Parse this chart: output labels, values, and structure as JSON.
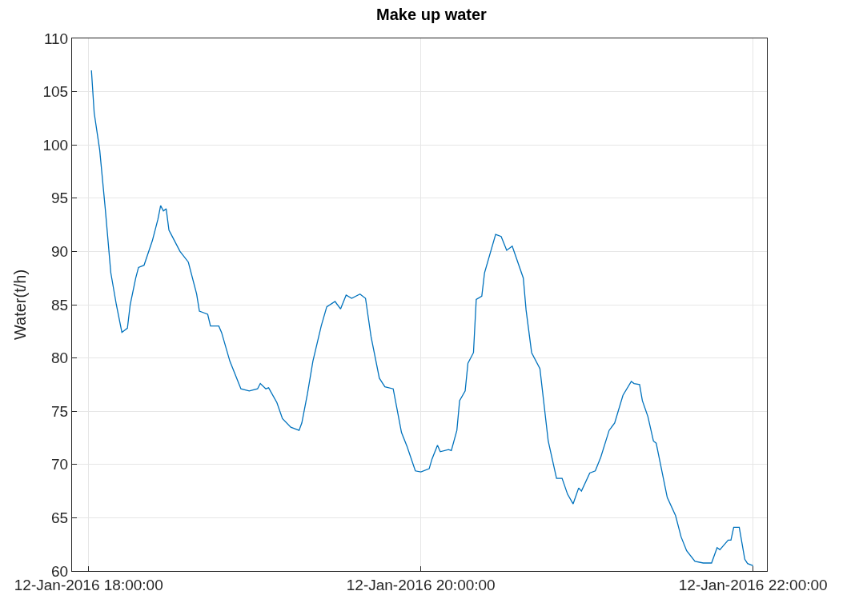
{
  "chart_data": {
    "type": "line",
    "title": "Make up water",
    "ylabel": "Water(t/h)",
    "x": [
      "2016-01-12T18:01",
      "2016-01-12T18:02",
      "2016-01-12T18:04",
      "2016-01-12T18:06",
      "2016-01-12T18:08",
      "2016-01-12T18:10",
      "2016-01-12T18:12",
      "2016-01-12T18:13",
      "2016-01-12T18:14",
      "2016-01-12T18:15",
      "2016-01-12T18:17",
      "2016-01-12T18:18",
      "2016-01-12T18:20",
      "2016-01-12T18:23",
      "2016-01-12T18:25",
      "2016-01-12T18:26",
      "2016-01-12T18:27",
      "2016-01-12T18:28",
      "2016-01-12T18:29",
      "2016-01-12T18:30",
      "2016-01-12T18:33",
      "2016-01-12T18:36",
      "2016-01-12T18:39",
      "2016-01-12T18:40",
      "2016-01-12T18:43",
      "2016-01-12T18:44",
      "2016-01-12T18:47",
      "2016-01-12T18:48",
      "2016-01-12T18:51",
      "2016-01-12T18:55",
      "2016-01-12T18:58",
      "2016-01-12T19:01",
      "2016-01-12T19:02",
      "2016-01-12T19:04",
      "2016-01-12T19:05",
      "2016-01-12T19:08",
      "2016-01-12T19:10",
      "2016-01-12T19:13",
      "2016-01-12T19:16",
      "2016-01-12T19:17",
      "2016-01-12T19:19",
      "2016-01-12T19:21",
      "2016-01-12T19:24",
      "2016-01-12T19:26",
      "2016-01-12T19:29",
      "2016-01-12T19:31",
      "2016-01-12T19:33",
      "2016-01-12T19:35",
      "2016-01-12T19:38",
      "2016-01-12T19:40",
      "2016-01-12T19:42",
      "2016-01-12T19:45",
      "2016-01-12T19:47",
      "2016-01-12T19:50",
      "2016-01-12T19:53",
      "2016-01-12T19:55",
      "2016-01-12T19:58",
      "2016-01-12T20:00",
      "2016-01-12T20:03",
      "2016-01-12T20:04",
      "2016-01-12T20:06",
      "2016-01-12T20:07",
      "2016-01-12T20:10",
      "2016-01-12T20:11",
      "2016-01-12T20:13",
      "2016-01-12T20:14",
      "2016-01-12T20:16",
      "2016-01-12T20:17",
      "2016-01-12T20:19",
      "2016-01-12T20:20",
      "2016-01-12T20:22",
      "2016-01-12T20:23",
      "2016-01-12T20:27",
      "2016-01-12T20:29",
      "2016-01-12T20:31",
      "2016-01-12T20:33",
      "2016-01-12T20:35",
      "2016-01-12T20:37",
      "2016-01-12T20:38",
      "2016-01-12T20:40",
      "2016-01-12T20:43",
      "2016-01-12T20:46",
      "2016-01-12T20:49",
      "2016-01-12T20:51",
      "2016-01-12T20:53",
      "2016-01-12T20:55",
      "2016-01-12T20:57",
      "2016-01-12T20:58",
      "2016-01-12T21:01",
      "2016-01-12T21:03",
      "2016-01-12T21:05",
      "2016-01-12T21:08",
      "2016-01-12T21:10",
      "2016-01-12T21:13",
      "2016-01-12T21:16",
      "2016-01-12T21:17",
      "2016-01-12T21:19",
      "2016-01-12T21:20",
      "2016-01-12T21:22",
      "2016-01-12T21:24",
      "2016-01-12T21:25",
      "2016-01-12T21:29",
      "2016-01-12T21:32",
      "2016-01-12T21:34",
      "2016-01-12T21:36",
      "2016-01-12T21:39",
      "2016-01-12T21:42",
      "2016-01-12T21:45",
      "2016-01-12T21:47",
      "2016-01-12T21:48",
      "2016-01-12T21:51",
      "2016-01-12T21:52",
      "2016-01-12T21:53",
      "2016-01-12T21:55",
      "2016-01-12T21:56",
      "2016-01-12T21:57",
      "2016-01-12T21:58",
      "2016-01-12T22:00"
    ],
    "series": [
      {
        "color": "#0072bd",
        "values": [
          107,
          103,
          99.5,
          94,
          88,
          85,
          82.4,
          82.6,
          82.8,
          85,
          87.5,
          88.5,
          88.7,
          91,
          93,
          94.3,
          93.8,
          94,
          92,
          91.5,
          90,
          89,
          86,
          84.4,
          84.1,
          83,
          83,
          82.4,
          79.7,
          77.1,
          76.9,
          77.1,
          77.6,
          77.1,
          77.2,
          75.8,
          74.3,
          73.5,
          73.2,
          73.9,
          76.6,
          79.7,
          83,
          84.8,
          85.3,
          84.6,
          85.9,
          85.6,
          86,
          85.6,
          82,
          78.1,
          77.3,
          77.1,
          73,
          71.7,
          69.4,
          69.3,
          69.6,
          70.5,
          71.8,
          71.2,
          71.4,
          71.3,
          73.2,
          76,
          76.9,
          79.5,
          80.5,
          85.5,
          85.8,
          88,
          91.6,
          91.4,
          90.1,
          90.5,
          89,
          87.5,
          84.5,
          80.5,
          79,
          72.2,
          68.7,
          68.7,
          67.2,
          66.3,
          67.8,
          67.5,
          69.2,
          69.4,
          70.7,
          73.2,
          73.9,
          76.5,
          77.8,
          77.6,
          77.5,
          76,
          74.5,
          72.2,
          72,
          66.9,
          65.2,
          63.2,
          61.9,
          60.9,
          60.75,
          60.75,
          62.2,
          62,
          62.9,
          62.9,
          64.1,
          64.1,
          62.6,
          61.1,
          60.7,
          60.5
        ]
      }
    ],
    "xlim": [
      "2016-01-12T17:54",
      "2016-01-12T22:05"
    ],
    "xticks": [
      {
        "value": "2016-01-12T18:00",
        "label": "12-Jan-2016 18:00:00"
      },
      {
        "value": "2016-01-12T20:00",
        "label": "12-Jan-2016 20:00:00"
      },
      {
        "value": "2016-01-12T22:00",
        "label": "12-Jan-2016 22:00:00"
      }
    ],
    "ylim": [
      60,
      110
    ],
    "yticks": [
      60,
      65,
      70,
      75,
      80,
      85,
      90,
      95,
      100,
      105,
      110
    ],
    "grid": true,
    "line_style": "solid"
  }
}
